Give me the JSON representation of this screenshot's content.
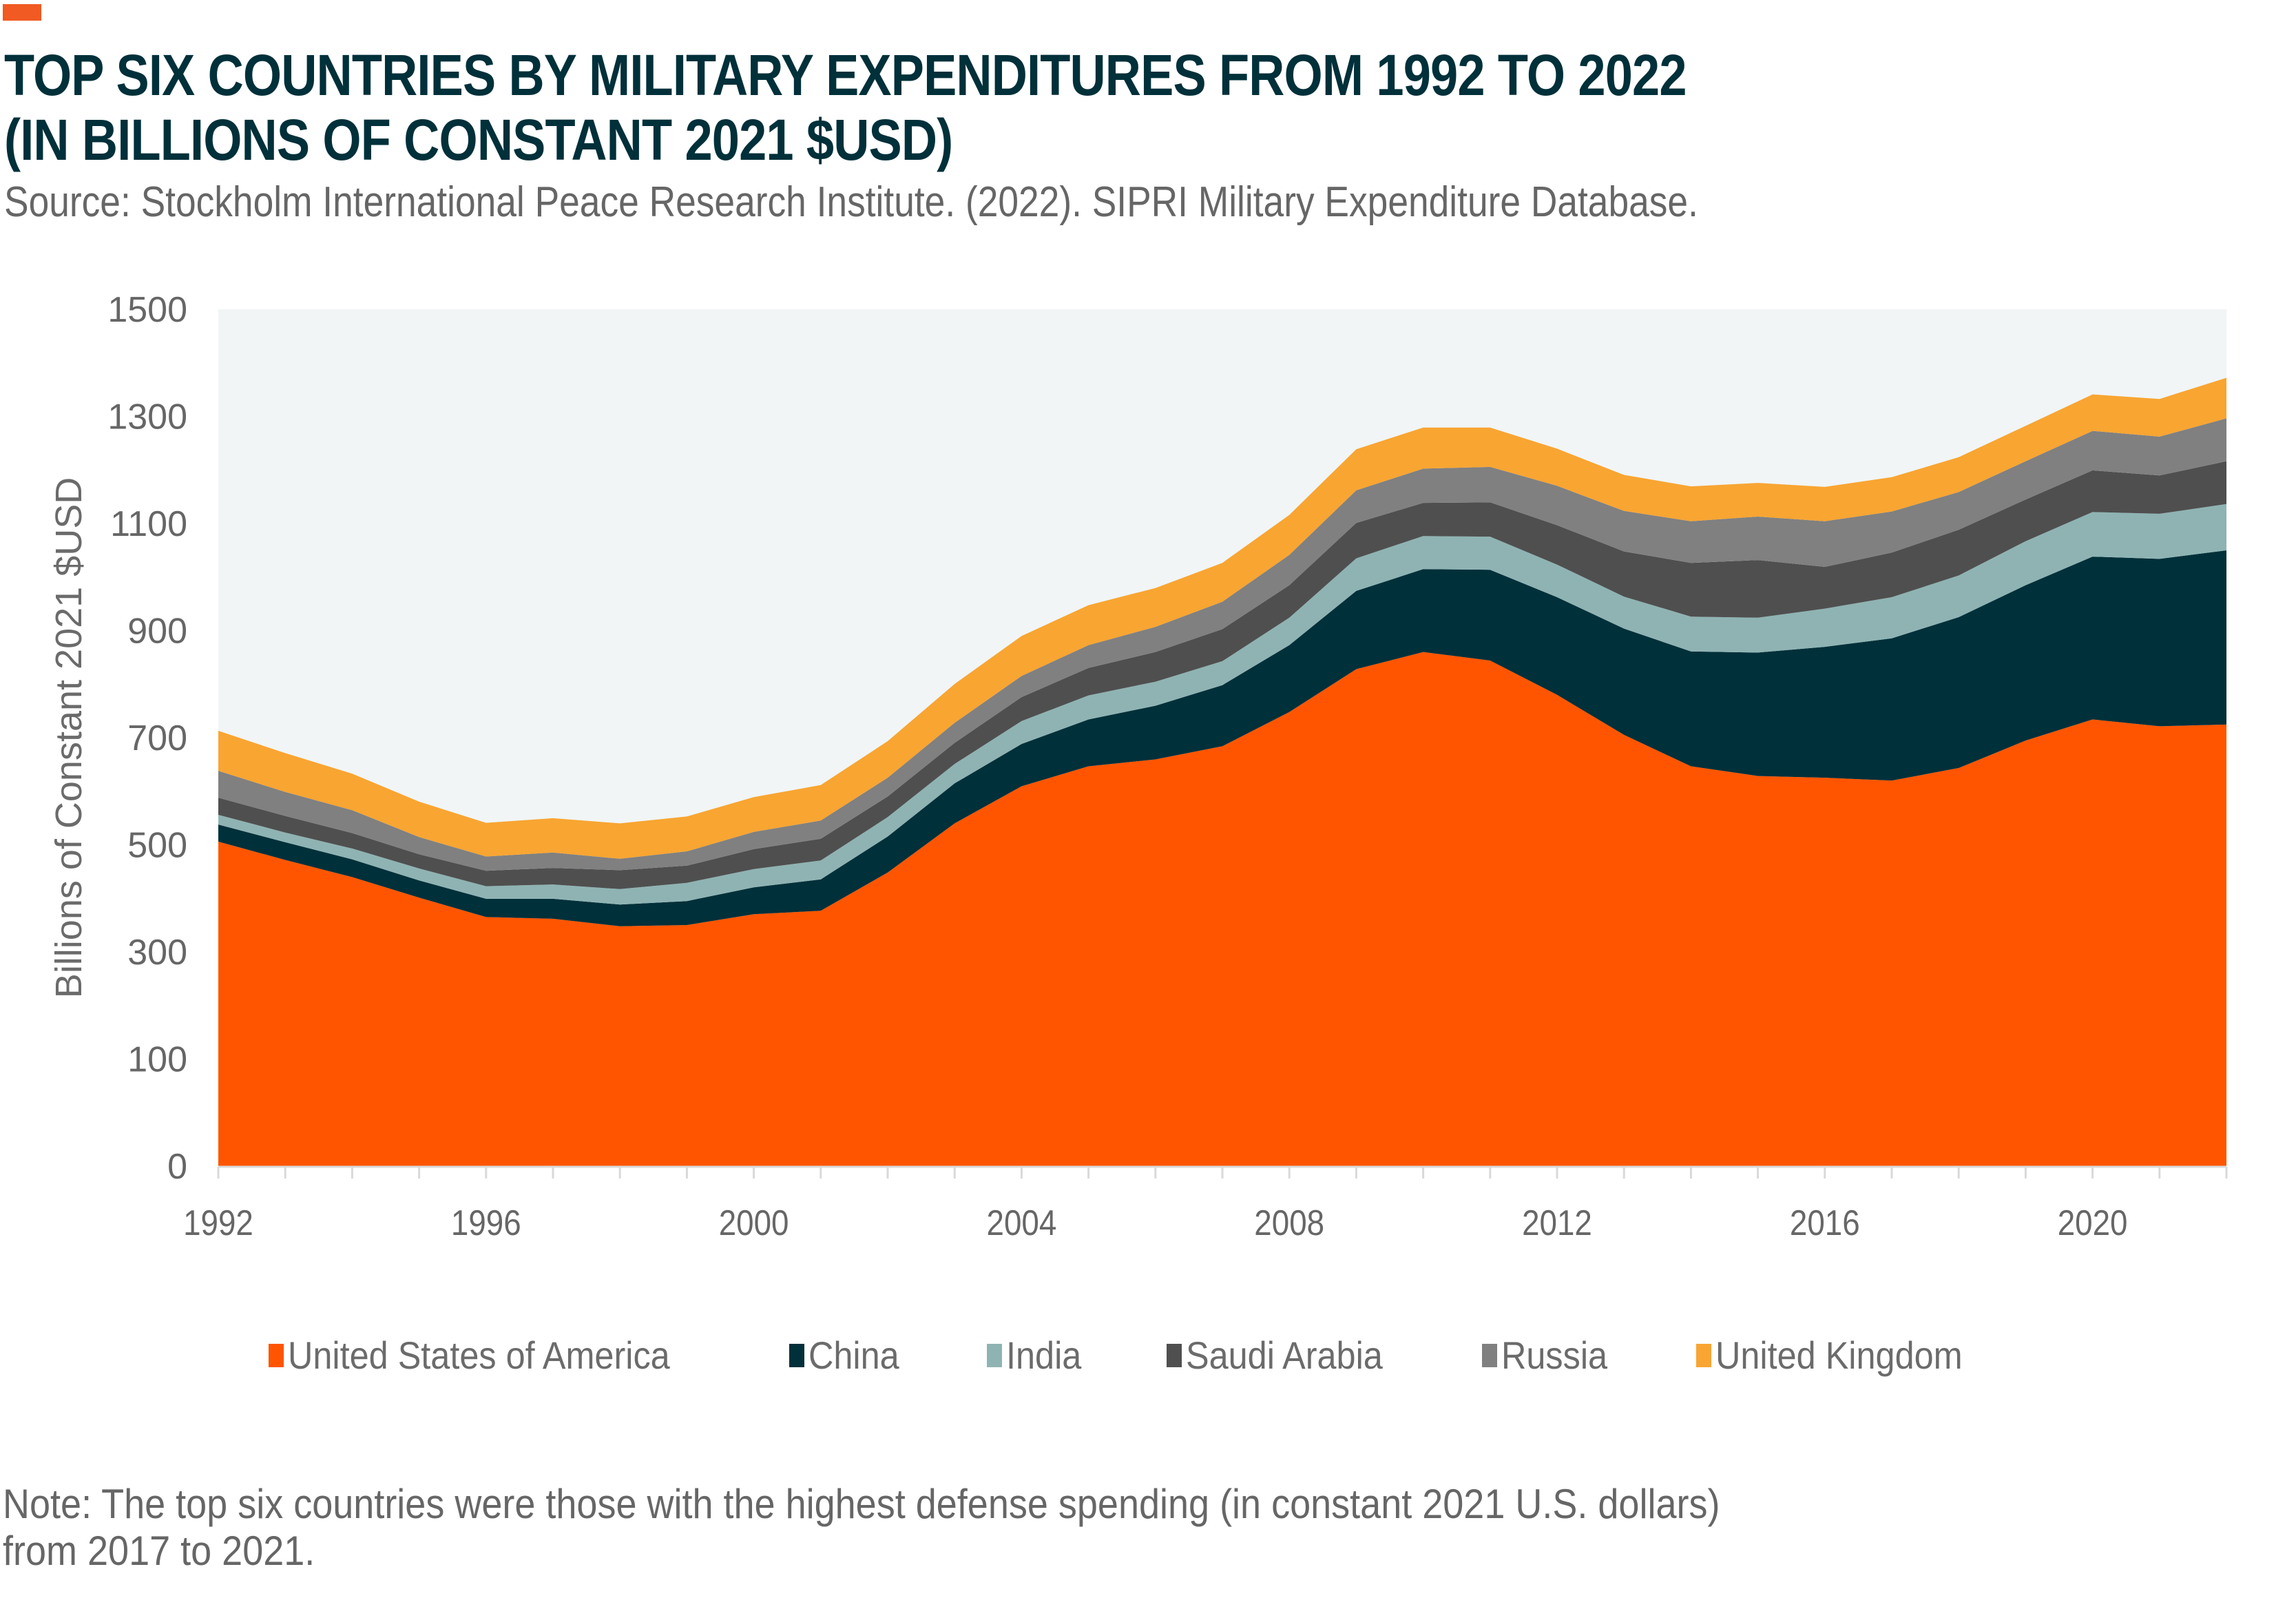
{
  "header": {
    "title_line1": "TOP SIX COUNTRIES BY MILITARY EXPENDITURES FROM 1992 TO 2022",
    "title_line2": "(IN BILLIONS OF CONSTANT 2021 $USD)",
    "source": "Source: Stockholm International Peace Research Institute. (2022). SIPRI Military Expenditure Database."
  },
  "note": {
    "line1": "Note: The top six countries were those with the highest defense spending (in constant 2021 U.S. dollars)",
    "line2": "from 2017 to 2021."
  },
  "colors": {
    "accent": "#F15A22",
    "title": "#00303A",
    "plot_bg": "#F1F5F6"
  },
  "chart_data": {
    "type": "area",
    "stacked": true,
    "title": "Top Six Countries by Military Expenditures from 1992 to 2022 (in billions of constant 2021 $USD)",
    "xlabel": "",
    "ylabel": "Billions of Constant 2021 $USD",
    "ylim": [
      0,
      1500
    ],
    "y_ticks": [
      "0",
      "100",
      "300",
      "500",
      "700",
      "900",
      "1100",
      "1300",
      "1500"
    ],
    "x": [
      1992,
      1993,
      1994,
      1995,
      1996,
      1997,
      1998,
      1999,
      2000,
      2001,
      2002,
      2003,
      2004,
      2005,
      2006,
      2007,
      2008,
      2009,
      2010,
      2011,
      2012,
      2013,
      2014,
      2015,
      2016,
      2017,
      2018,
      2019,
      2020,
      2021,
      2022
    ],
    "x_tick_labels": [
      "1992",
      "1996",
      "2000",
      "2004",
      "2008",
      "2012",
      "2016",
      "2020"
    ],
    "x_tick_years": [
      1992,
      1996,
      2000,
      2004,
      2008,
      2012,
      2016,
      2020
    ],
    "grid": false,
    "legend_position": "bottom",
    "series": [
      {
        "name": "United States of America",
        "color": "#FF5500",
        "values": [
          568,
          536,
          506,
          470,
          436,
          433,
          420,
          422,
          441,
          447,
          514,
          600,
          665,
          700,
          712,
          735,
          795,
          870,
          900,
          885,
          825,
          755,
          700,
          683,
          680,
          675,
          697,
          745,
          782,
          770,
          773
        ]
      },
      {
        "name": "China",
        "color": "#00303A",
        "values": [
          30,
          31,
          31,
          30,
          32,
          35,
          38,
          42,
          47,
          55,
          63,
          70,
          74,
          82,
          94,
          107,
          117,
          137,
          145,
          159,
          171,
          186,
          201,
          216,
          229,
          249,
          264,
          272,
          285,
          293,
          305
        ]
      },
      {
        "name": "India",
        "color": "#8FB3B3",
        "values": [
          17,
          17,
          19,
          21,
          22,
          25,
          27,
          32,
          32,
          33,
          34,
          34,
          40,
          42,
          42,
          42,
          48,
          57,
          58,
          58,
          57,
          56,
          61,
          61,
          67,
          72,
          73,
          77,
          78,
          79,
          81
        ]
      },
      {
        "name": "Saudi Arabia",
        "color": "#4F4F4F",
        "values": [
          30,
          29,
          27,
          25,
          27,
          29,
          33,
          30,
          35,
          38,
          36,
          37,
          42,
          48,
          52,
          56,
          57,
          62,
          58,
          60,
          69,
          79,
          94,
          101,
          73,
          78,
          80,
          73,
          73,
          67,
          75
        ]
      },
      {
        "name": "Russia",
        "color": "#808080",
        "values": [
          47,
          42,
          40,
          30,
          25,
          27,
          20,
          25,
          30,
          32,
          33,
          35,
          37,
          40,
          44,
          48,
          53,
          57,
          60,
          62,
          69,
          71,
          73,
          76,
          80,
          72,
          66,
          67,
          69,
          68,
          75
        ]
      },
      {
        "name": "United Kingdom",
        "color": "#F8A532",
        "values": [
          70,
          68,
          64,
          62,
          59,
          60,
          62,
          61,
          61,
          62,
          64,
          68,
          70,
          70,
          68,
          68,
          70,
          72,
          72,
          69,
          65,
          63,
          61,
          59,
          60,
          60,
          61,
          62,
          64,
          66,
          71
        ]
      }
    ]
  }
}
